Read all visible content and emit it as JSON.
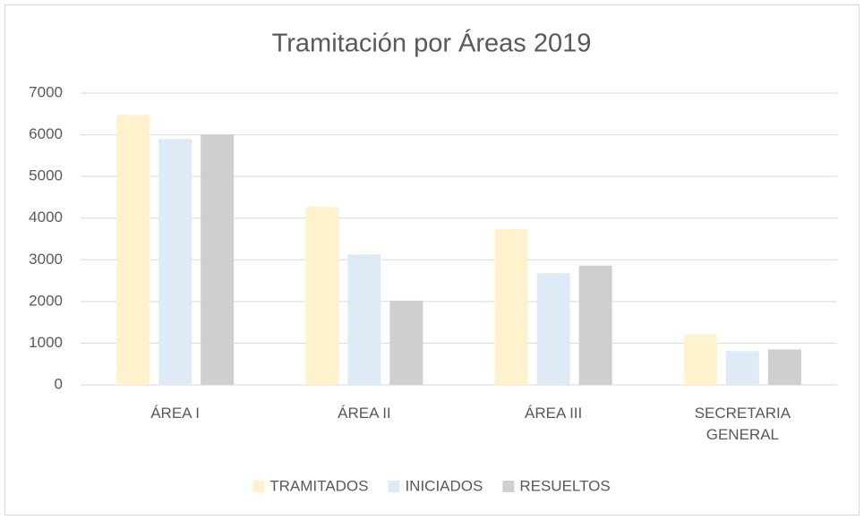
{
  "chart_data": {
    "type": "bar",
    "title": "Tramitación por Áreas 2019",
    "categories": [
      "ÁREA I",
      "ÁREA II",
      "ÁREA III",
      "SECRETARIA GENERAL"
    ],
    "series": [
      {
        "name": "TRAMITADOS",
        "color": "#fff2cc",
        "values": [
          6470,
          4270,
          3740,
          1210
        ]
      },
      {
        "name": "INICIADOS",
        "color": "#deebf7",
        "values": [
          5900,
          3130,
          2680,
          810
        ]
      },
      {
        "name": "RESUELTOS",
        "color": "#d0cece",
        "values": [
          6000,
          2020,
          2860,
          850
        ]
      }
    ],
    "ylim": [
      0,
      7000
    ],
    "yticks": [
      0,
      1000,
      2000,
      3000,
      4000,
      5000,
      6000,
      7000
    ],
    "grid": true,
    "legend": "bottom"
  }
}
